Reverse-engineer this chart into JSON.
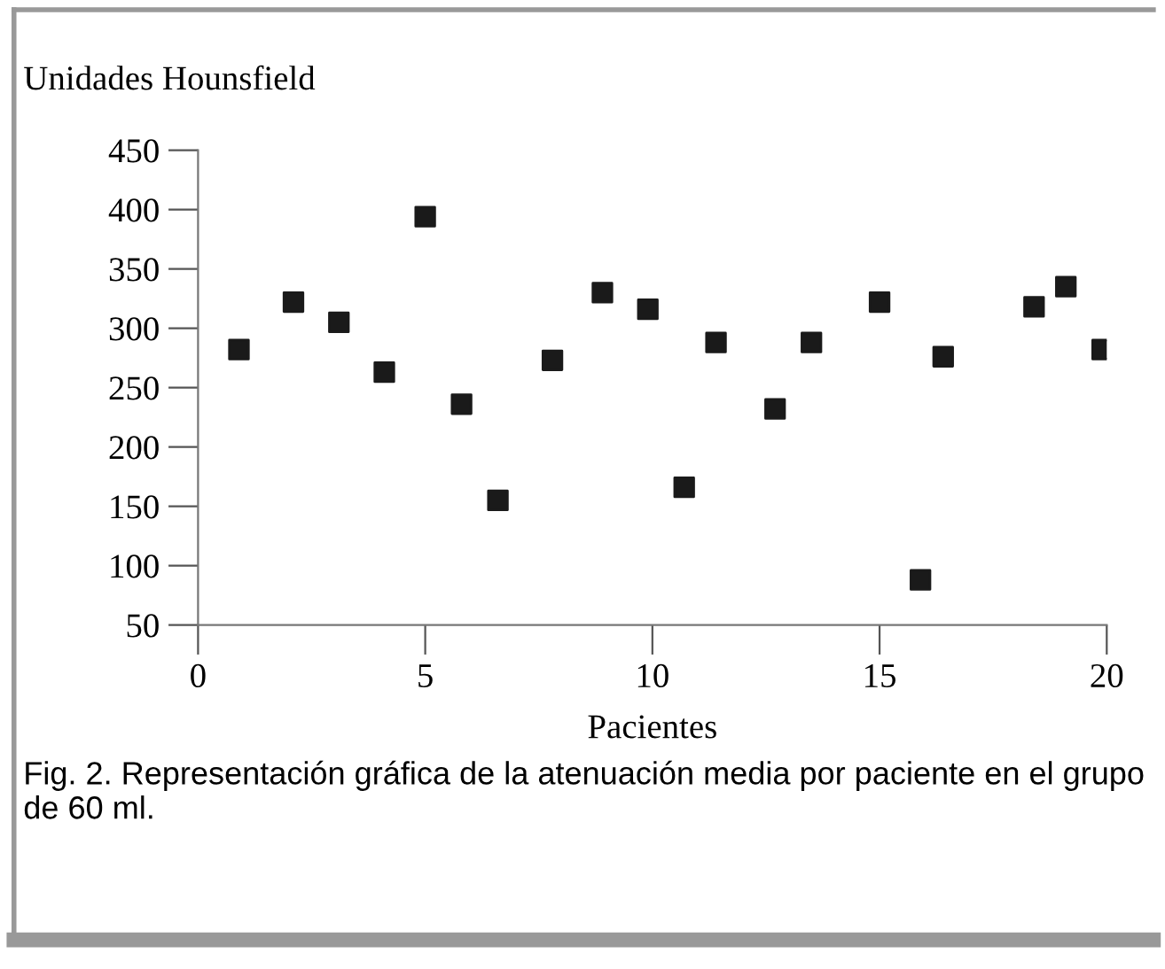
{
  "chart_data": {
    "type": "scatter",
    "ylabel": "Unidades Hounsfield",
    "xlabel": "Pacientes",
    "annotations": [
      "Fig. 2. Representación gráfica de la atenuación media por paciente en el grupo de 60 ml."
    ],
    "x": [
      0.9,
      2.1,
      3.1,
      4.1,
      5.0,
      5.8,
      6.6,
      7.8,
      8.9,
      9.9,
      10.7,
      11.4,
      12.7,
      13.5,
      15.0,
      15.9,
      16.4,
      18.4,
      19.1,
      19.9
    ],
    "values": [
      282,
      322,
      305,
      263,
      394,
      236,
      155,
      273,
      330,
      316,
      166,
      288,
      232,
      288,
      322,
      88,
      276,
      318,
      335,
      282
    ],
    "color": "#1a1a1a",
    "marker": "square",
    "xlim": [
      0,
      20
    ],
    "xticks": [
      0,
      5,
      10,
      15,
      20
    ],
    "ylim": [
      50,
      450
    ],
    "yticks": [
      50,
      100,
      150,
      200,
      250,
      300,
      350,
      400,
      450
    ],
    "grid": false
  }
}
